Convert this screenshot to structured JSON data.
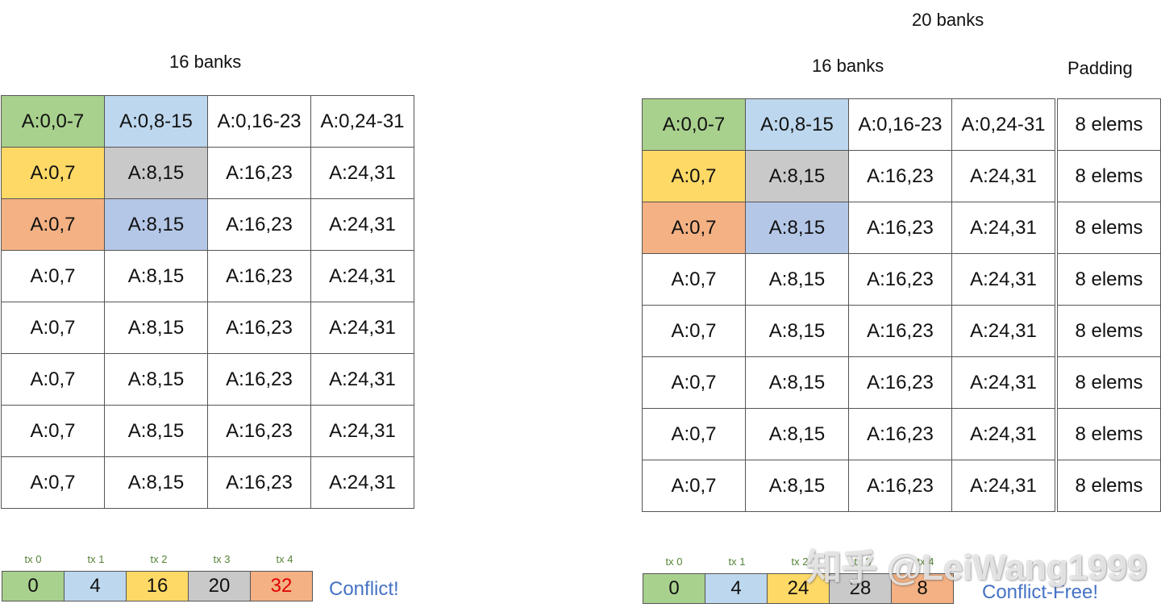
{
  "left": {
    "banks_label": "16 banks",
    "grid": [
      [
        {
          "text": "A:0,0-7",
          "color": "green"
        },
        {
          "text": "A:0,8-15",
          "color": "lblue"
        },
        {
          "text": "A:0,16-23",
          "color": "white"
        },
        {
          "text": "A:0,24-31",
          "color": "white"
        }
      ],
      [
        {
          "text": "A:0,7",
          "color": "yellow"
        },
        {
          "text": "A:8,15",
          "color": "gray"
        },
        {
          "text": "A:16,23",
          "color": "white"
        },
        {
          "text": "A:24,31",
          "color": "white"
        }
      ],
      [
        {
          "text": "A:0,7",
          "color": "orange"
        },
        {
          "text": "A:8,15",
          "color": "pblue"
        },
        {
          "text": "A:16,23",
          "color": "white"
        },
        {
          "text": "A:24,31",
          "color": "white"
        }
      ],
      [
        {
          "text": "A:0,7",
          "color": "white"
        },
        {
          "text": "A:8,15",
          "color": "white"
        },
        {
          "text": "A:16,23",
          "color": "white"
        },
        {
          "text": "A:24,31",
          "color": "white"
        }
      ],
      [
        {
          "text": "A:0,7",
          "color": "white"
        },
        {
          "text": "A:8,15",
          "color": "white"
        },
        {
          "text": "A:16,23",
          "color": "white"
        },
        {
          "text": "A:24,31",
          "color": "white"
        }
      ],
      [
        {
          "text": "A:0,7",
          "color": "white"
        },
        {
          "text": "A:8,15",
          "color": "white"
        },
        {
          "text": "A:16,23",
          "color": "white"
        },
        {
          "text": "A:24,31",
          "color": "white"
        }
      ],
      [
        {
          "text": "A:0,7",
          "color": "white"
        },
        {
          "text": "A:8,15",
          "color": "white"
        },
        {
          "text": "A:16,23",
          "color": "white"
        },
        {
          "text": "A:24,31",
          "color": "white"
        }
      ],
      [
        {
          "text": "A:0,7",
          "color": "white"
        },
        {
          "text": "A:8,15",
          "color": "white"
        },
        {
          "text": "A:16,23",
          "color": "white"
        },
        {
          "text": "A:24,31",
          "color": "white"
        }
      ]
    ],
    "tx_labels": [
      "tx 0",
      "tx 1",
      "tx 2",
      "tx 3",
      "tx 4"
    ],
    "tx_boxes": [
      {
        "text": "0",
        "color": "green",
        "red": false
      },
      {
        "text": "4",
        "color": "lblue",
        "red": false
      },
      {
        "text": "16",
        "color": "yellow",
        "red": false
      },
      {
        "text": "20",
        "color": "gray",
        "red": false
      },
      {
        "text": "32",
        "color": "orange",
        "red": true
      }
    ],
    "status": "Conflict!"
  },
  "right": {
    "total_banks_label": "20 banks",
    "banks_label": "16 banks",
    "padding_label": "Padding",
    "grid": [
      [
        {
          "text": "A:0,0-7",
          "color": "green"
        },
        {
          "text": "A:0,8-15",
          "color": "lblue"
        },
        {
          "text": "A:0,16-23",
          "color": "white"
        },
        {
          "text": "A:0,24-31",
          "color": "white"
        }
      ],
      [
        {
          "text": "A:0,7",
          "color": "yellow"
        },
        {
          "text": "A:8,15",
          "color": "gray"
        },
        {
          "text": "A:16,23",
          "color": "white"
        },
        {
          "text": "A:24,31",
          "color": "white"
        }
      ],
      [
        {
          "text": "A:0,7",
          "color": "orange"
        },
        {
          "text": "A:8,15",
          "color": "pblue"
        },
        {
          "text": "A:16,23",
          "color": "white"
        },
        {
          "text": "A:24,31",
          "color": "white"
        }
      ],
      [
        {
          "text": "A:0,7",
          "color": "white"
        },
        {
          "text": "A:8,15",
          "color": "white"
        },
        {
          "text": "A:16,23",
          "color": "white"
        },
        {
          "text": "A:24,31",
          "color": "white"
        }
      ],
      [
        {
          "text": "A:0,7",
          "color": "white"
        },
        {
          "text": "A:8,15",
          "color": "white"
        },
        {
          "text": "A:16,23",
          "color": "white"
        },
        {
          "text": "A:24,31",
          "color": "white"
        }
      ],
      [
        {
          "text": "A:0,7",
          "color": "white"
        },
        {
          "text": "A:8,15",
          "color": "white"
        },
        {
          "text": "A:16,23",
          "color": "white"
        },
        {
          "text": "A:24,31",
          "color": "white"
        }
      ],
      [
        {
          "text": "A:0,7",
          "color": "white"
        },
        {
          "text": "A:8,15",
          "color": "white"
        },
        {
          "text": "A:16,23",
          "color": "white"
        },
        {
          "text": "A:24,31",
          "color": "white"
        }
      ],
      [
        {
          "text": "A:0,7",
          "color": "white"
        },
        {
          "text": "A:8,15",
          "color": "white"
        },
        {
          "text": "A:16,23",
          "color": "white"
        },
        {
          "text": "A:24,31",
          "color": "white"
        }
      ]
    ],
    "padding_cells": [
      "8 elems",
      "8 elems",
      "8 elems",
      "8 elems",
      "8 elems",
      "8 elems",
      "8 elems",
      "8 elems"
    ],
    "tx_labels": [
      "tx 0",
      "tx 1",
      "tx 2",
      "tx 3",
      "tx 4"
    ],
    "tx_boxes": [
      {
        "text": "0",
        "color": "green",
        "red": false
      },
      {
        "text": "4",
        "color": "lblue",
        "red": false
      },
      {
        "text": "24",
        "color": "yellow",
        "red": false
      },
      {
        "text": "28",
        "color": "gray",
        "red": false
      },
      {
        "text": "8",
        "color": "orange",
        "red": false
      }
    ],
    "status": "Conflict-Free!"
  },
  "watermark": "知乎 @LeiWang1999",
  "colors": {
    "green": "#a9d18e",
    "lblue": "#bdd7ee",
    "yellow": "#ffd966",
    "gray": "#c9c9c9",
    "orange": "#f4b183",
    "pblue": "#b4c7e7",
    "white": "#ffffff",
    "conflict_red": "#e00000",
    "status_blue": "#4472c4",
    "tx_label_green": "#548235"
  }
}
